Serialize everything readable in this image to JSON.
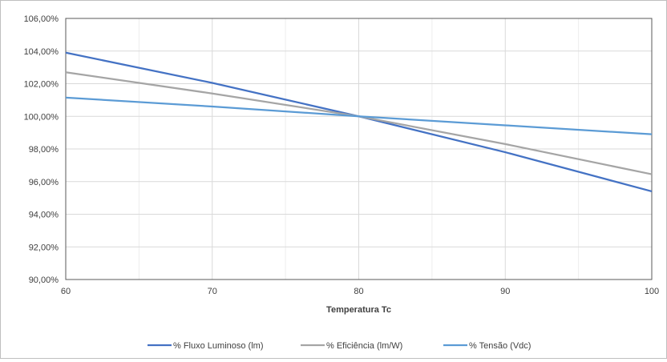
{
  "chart_data": {
    "type": "line",
    "title": "",
    "xlabel": "Temperatura Tc",
    "ylabel": "",
    "xlim": [
      60,
      100
    ],
    "ylim": [
      90,
      106
    ],
    "x_ticks": [
      60,
      70,
      80,
      90,
      100
    ],
    "x_tick_labels": [
      "60",
      "70",
      "80",
      "90",
      "100"
    ],
    "y_ticks": [
      90,
      92,
      94,
      96,
      98,
      100,
      102,
      104,
      106
    ],
    "y_tick_labels": [
      "90,00%",
      "92,00%",
      "94,00%",
      "96,00%",
      "98,00%",
      "100,00%",
      "102,00%",
      "104,00%",
      "106,00%"
    ],
    "grid": true,
    "legend_position": "bottom",
    "series": [
      {
        "name": "% Fluxo Luminoso (lm)",
        "color": "#4472c4",
        "x": [
          60,
          70,
          80,
          90,
          100
        ],
        "y": [
          103.9,
          102.05,
          100.0,
          97.8,
          95.4
        ]
      },
      {
        "name": "% Eficiência (lm/W)",
        "color": "#a5a5a5",
        "x": [
          60,
          70,
          80,
          90,
          100
        ],
        "y": [
          102.7,
          101.4,
          100.0,
          98.3,
          96.45
        ]
      },
      {
        "name": "% Tensão (Vdc)",
        "color": "#5b9bd5",
        "x": [
          60,
          70,
          80,
          90,
          100
        ],
        "y": [
          101.15,
          100.6,
          100.0,
          99.45,
          98.9
        ]
      }
    ]
  }
}
